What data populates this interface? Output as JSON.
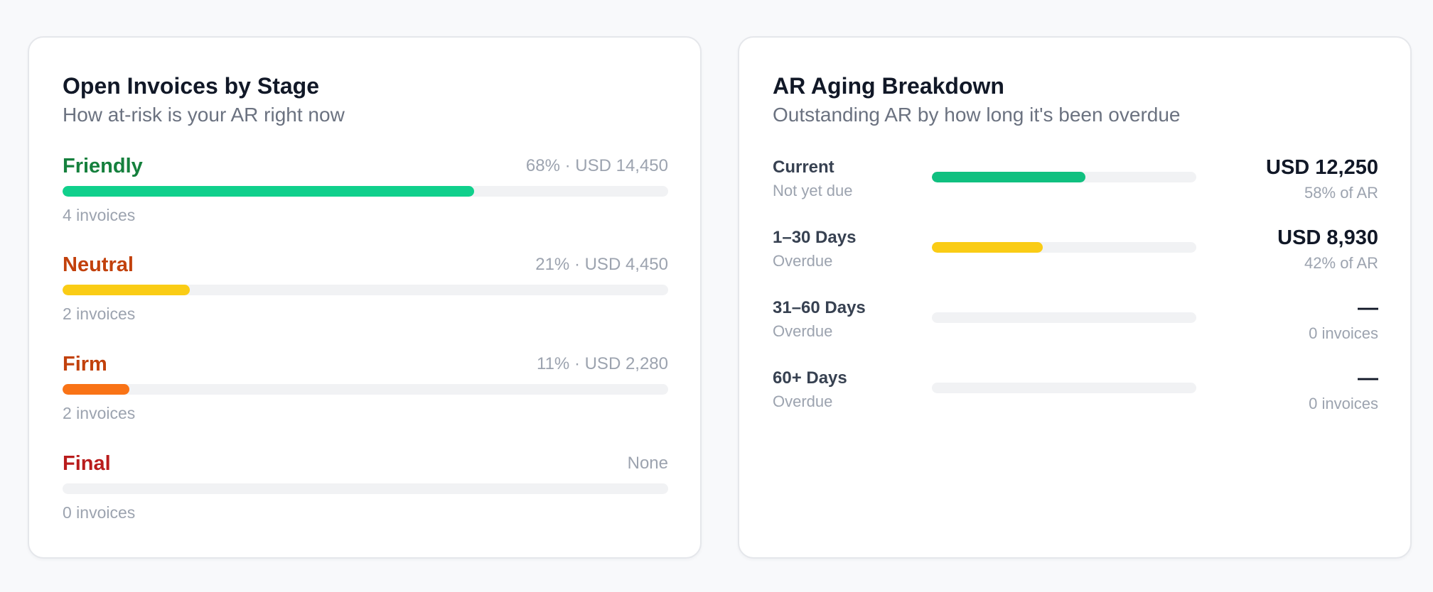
{
  "stages_card": {
    "title": "Open Invoices by Stage",
    "subtitle": "How at-risk is your AR right now",
    "stages": [
      {
        "label": "Friendly",
        "meta": "68% · USD 14,450",
        "count": "4 invoices",
        "percent": 68,
        "label_color": "#15803d",
        "bar_color": "#10d08c"
      },
      {
        "label": "Neutral",
        "meta": "21% · USD 4,450",
        "count": "2 invoices",
        "percent": 21,
        "label_color": "#c2410c",
        "bar_color": "#facc15"
      },
      {
        "label": "Firm",
        "meta": "11% · USD 2,280",
        "count": "2 invoices",
        "percent": 11,
        "label_color": "#c2410c",
        "bar_color": "#f97316"
      },
      {
        "label": "Final",
        "meta": "None",
        "count": "0 invoices",
        "percent": 0,
        "label_color": "#b91c1c",
        "bar_color": "#ef4444"
      }
    ]
  },
  "aging_card": {
    "title": "AR Aging Breakdown",
    "subtitle": "Outstanding AR by how long it's been overdue",
    "buckets": [
      {
        "label": "Current",
        "sub": "Not yet due",
        "amount": "USD 12,250",
        "share": "58% of AR",
        "percent": 58,
        "bar_color": "#10c080"
      },
      {
        "label": "1–30 Days",
        "sub": "Overdue",
        "amount": "USD 8,930",
        "share": "42% of AR",
        "percent": 42,
        "bar_color": "#facc15"
      },
      {
        "label": "31–60 Days",
        "sub": "Overdue",
        "amount": "—",
        "share": "0 invoices",
        "percent": 0,
        "bar_color": "#f97316"
      },
      {
        "label": "60+ Days",
        "sub": "Overdue",
        "amount": "—",
        "share": "0 invoices",
        "percent": 0,
        "bar_color": "#ef4444"
      }
    ]
  }
}
